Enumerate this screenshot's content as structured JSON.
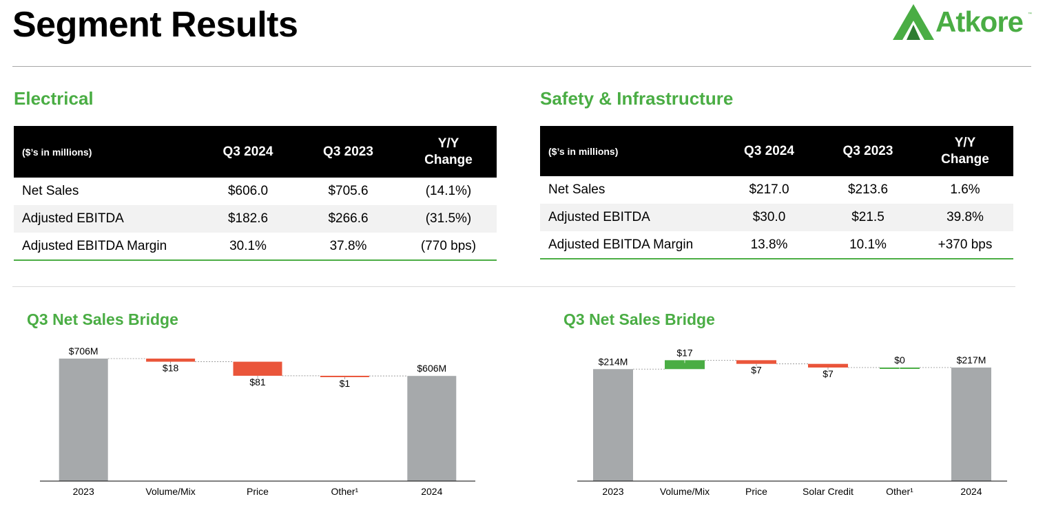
{
  "header": {
    "title": "Segment Results",
    "logo_text": "Atkore",
    "logo_tm": "™"
  },
  "electrical": {
    "title": "Electrical",
    "table": {
      "headers": [
        "($’s in millions)",
        "Q3 2024",
        "Q3 2023",
        "Y/Y",
        "Change"
      ],
      "rows": [
        [
          "Net Sales",
          "$606.0",
          "$705.6",
          "(14.1%)"
        ],
        [
          "Adjusted EBITDA",
          "$182.6",
          "$266.6",
          "(31.5%)"
        ],
        [
          "Adjusted EBITDA Margin",
          "30.1%",
          "37.8%",
          "(770 bps)"
        ]
      ]
    }
  },
  "safety": {
    "title": "Safety & Infrastructure",
    "table": {
      "headers": [
        "($’s in millions)",
        "Q3 2024",
        "Q3 2023",
        "Y/Y",
        "Change"
      ],
      "rows": [
        [
          "Net Sales",
          "$217.0",
          "$213.6",
          "1.6%"
        ],
        [
          "Adjusted EBITDA",
          "$30.0",
          "$21.5",
          "39.8%"
        ],
        [
          "Adjusted EBITDA Margin",
          "13.8%",
          "10.1%",
          "+370 bps"
        ]
      ]
    }
  },
  "colors": {
    "accent": "#4aad44",
    "total": "#a6a9ab",
    "decrease": "#ea553a",
    "increase": "#4aad44"
  },
  "chart_data": [
    {
      "type": "bar",
      "title": "Q3 Net Sales Bridge",
      "subtype": "waterfall",
      "categories": [
        "2023",
        "Volume/Mix",
        "Price",
        "Other¹",
        "2024"
      ],
      "values": [
        706,
        -18,
        -81,
        -1,
        606
      ],
      "kinds": [
        "total",
        "delta",
        "delta",
        "delta",
        "total"
      ],
      "labels": [
        "$706M",
        "$18",
        "$81",
        "$1",
        "$606M"
      ]
    },
    {
      "type": "bar",
      "title": "Q3 Net Sales Bridge",
      "subtype": "waterfall",
      "categories": [
        "2023",
        "Volume/Mix",
        "Price",
        "Solar Credit",
        "Other¹",
        "2024"
      ],
      "values": [
        214,
        17,
        -7,
        -7,
        0,
        217
      ],
      "kinds": [
        "total",
        "delta",
        "delta",
        "delta",
        "delta",
        "total"
      ],
      "labels": [
        "$214M",
        "$17",
        "$7",
        "$7",
        "$0",
        "$217M"
      ]
    }
  ]
}
